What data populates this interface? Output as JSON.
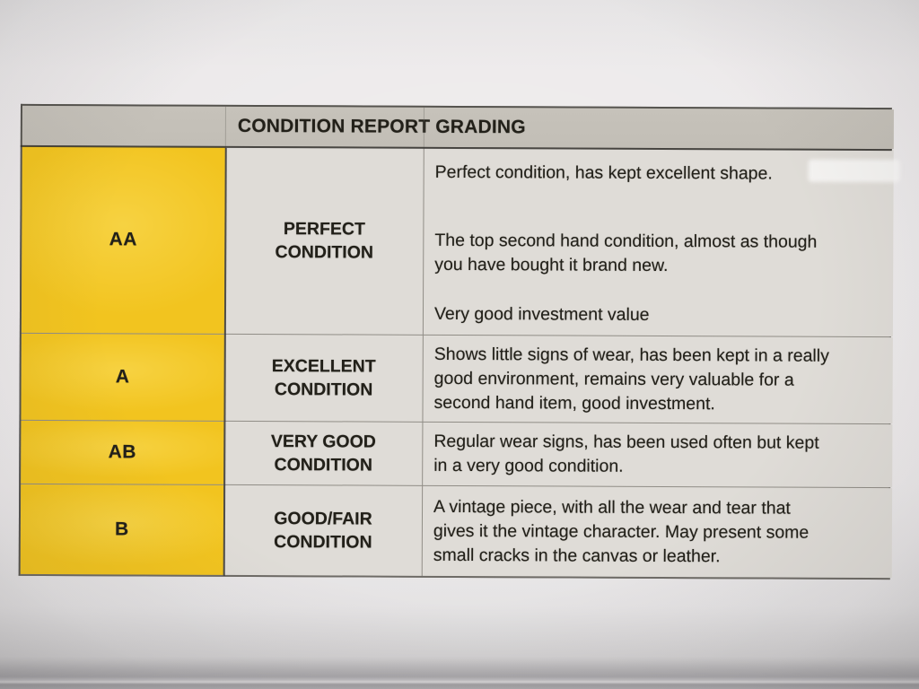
{
  "document": {
    "title": "CONDITION REPORT GRADING",
    "rows": [
      {
        "grade": "AA",
        "name_lines": [
          "PERFECT",
          "CONDITION"
        ],
        "paragraphs": [
          [
            "Perfect condition, has kept excellent shape."
          ],
          [
            "The top second hand condition, almost as though",
            "you have bought it brand new."
          ],
          [
            "Very good investment value"
          ]
        ]
      },
      {
        "grade": "A",
        "name_lines": [
          "EXCELLENT",
          "CONDITION"
        ],
        "paragraphs": [
          [
            "Shows little signs of wear, has been kept in a really",
            "good environment, remains very valuable for a",
            "second hand item, good investment."
          ]
        ]
      },
      {
        "grade": "AB",
        "name_lines": [
          "VERY GOOD",
          "CONDITION"
        ],
        "paragraphs": [
          [
            "Regular wear signs, has been used often but kept",
            "in a very good condition."
          ]
        ]
      },
      {
        "grade": "B",
        "name_lines": [
          "GOOD/FAIR",
          "CONDITION"
        ],
        "paragraphs": [
          [
            "A vintage piece, with all the wear and tear that",
            "gives it the vintage character. May present some",
            "small cracks in the canvas or leather."
          ]
        ]
      }
    ],
    "colors": {
      "grade_column_yellow": "#f2c41f",
      "header_gray": "#c2beb6",
      "cell_gray": "#dfdcd7",
      "text": "#222019"
    }
  }
}
